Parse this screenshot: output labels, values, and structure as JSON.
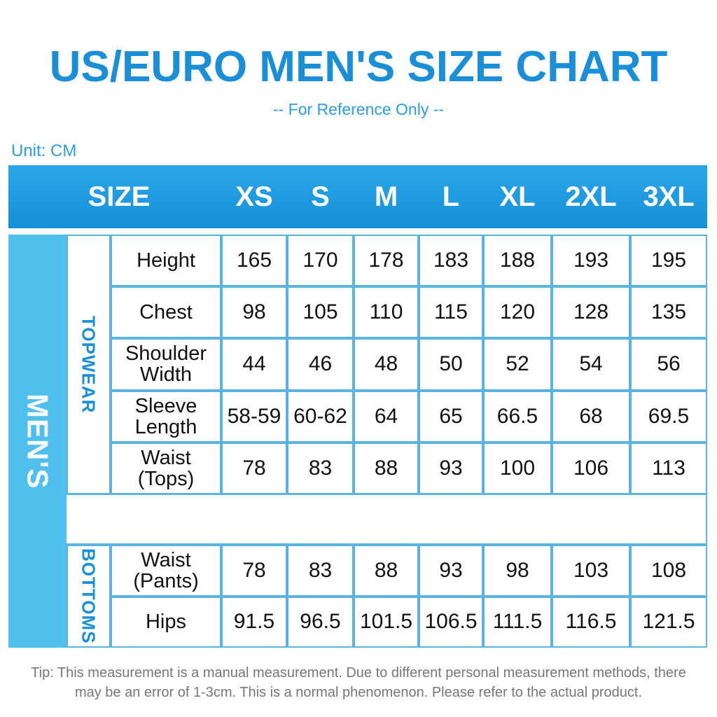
{
  "header": {
    "title": "US/EURO MEN'S SIZE CHART",
    "subtitle": "-- For Reference Only --",
    "unit": "Unit: CM"
  },
  "table": {
    "size_label": "SIZE",
    "sizes": [
      "XS",
      "S",
      "M",
      "L",
      "XL",
      "2XL",
      "3XL"
    ],
    "group_label": "MEN'S",
    "sections": [
      {
        "label": "TOPWEAR",
        "rows": [
          {
            "label": "Height",
            "values": [
              165,
              170,
              178,
              183,
              188,
              193,
              195
            ]
          },
          {
            "label": "Chest",
            "values": [
              98,
              105,
              110,
              115,
              120,
              128,
              135
            ]
          },
          {
            "label": "Shoulder Width",
            "values": [
              44,
              46,
              48,
              50,
              52,
              54,
              56
            ]
          },
          {
            "label": "Sleeve Length",
            "values": [
              "58-59",
              "60-62",
              64,
              65,
              66.5,
              68,
              69.5
            ]
          },
          {
            "label": "Waist (Tops)",
            "values": [
              78,
              83,
              88,
              93,
              100,
              106,
              113
            ]
          }
        ]
      },
      {
        "label": "BOTTOMS",
        "rows": [
          {
            "label": "Waist (Pants)",
            "values": [
              78,
              83,
              88,
              93,
              98,
              103,
              108
            ]
          },
          {
            "label": "Hips",
            "values": [
              91.5,
              96.5,
              101.5,
              106.5,
              111.5,
              116.5,
              121.5
            ]
          }
        ]
      }
    ]
  },
  "footer": {
    "tip": "Tip: This measurement is a manual measurement. Due to different personal measurement methods, there may be an error of 1-3cm. This is a normal phenomenon. Please refer to the actual product."
  }
}
